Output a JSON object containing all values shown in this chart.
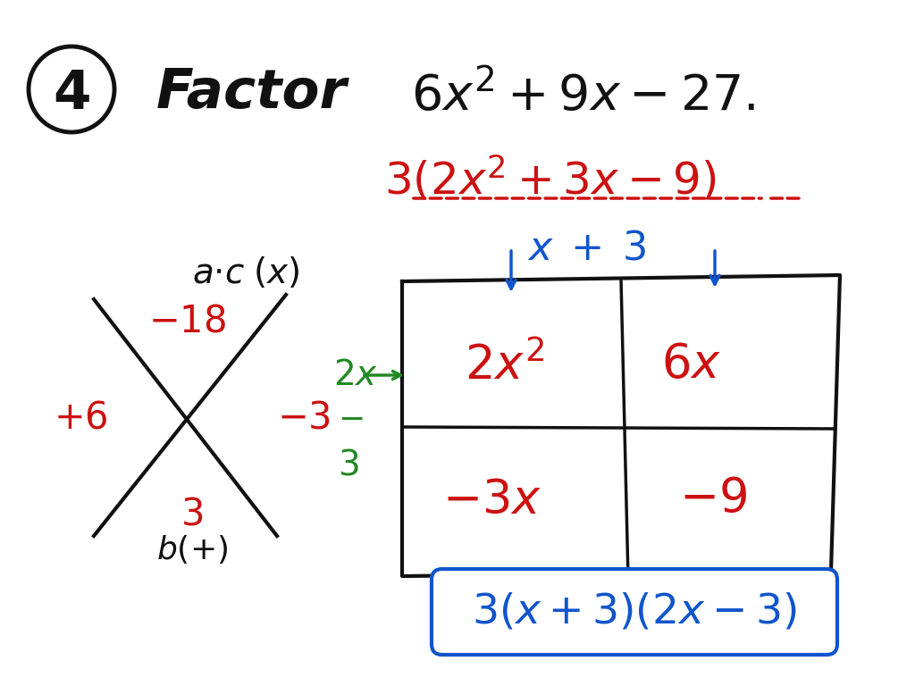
{
  "bg_color": "#ffffff",
  "colors": {
    "black": "#111111",
    "red": "#cc1111",
    "blue": "#1155cc",
    "green": "#228822"
  },
  "layout": {
    "fig_w": 10.24,
    "fig_h": 7.68,
    "dpi": 100
  }
}
